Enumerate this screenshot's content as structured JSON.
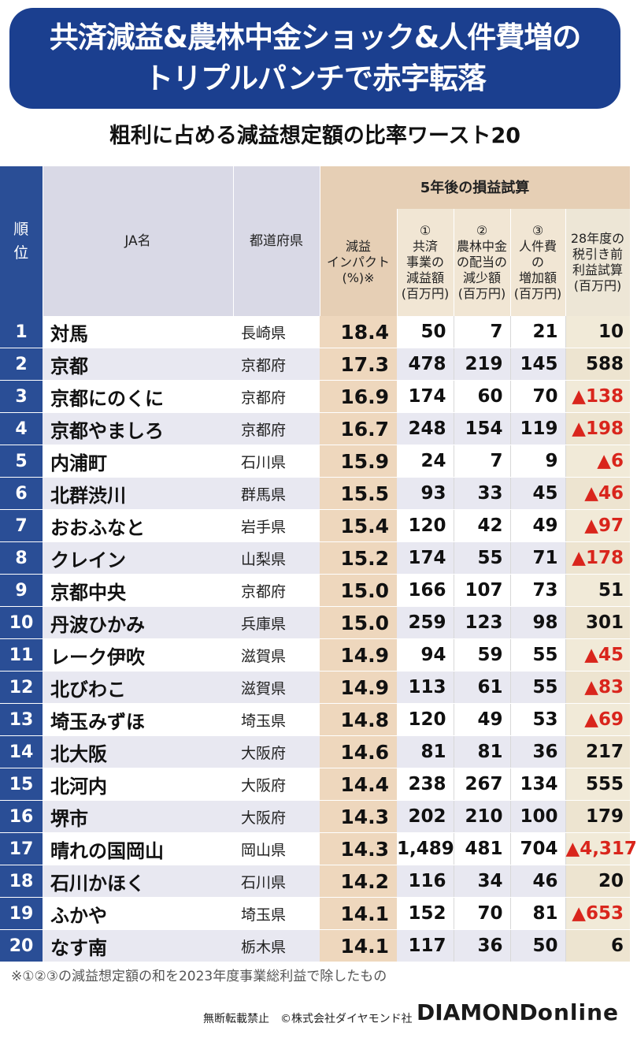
{
  "title_line1": "共済減益&農林中金ショック&人件費増の",
  "title_line2": "トリプルパンチで赤字転落",
  "subtitle": "粗利に占める減益想定額の比率ワースト20",
  "headers": {
    "rank": "順\n位",
    "ja": "JA名",
    "pref": "都道府県",
    "impact": "減益\nインパクト\n(%)※",
    "group": "5年後の損益試算",
    "c1": "①\n共済\n事業の\n減益額\n(百万円)",
    "c2": "②\n農林中金\nの配当の\n減少額\n(百万円)",
    "c3": "③\n人件費\nの\n増加額\n(百万円)",
    "c4": "28年度の\n税引き前\n利益試算\n(百万円)"
  },
  "rows": [
    {
      "rank": "1",
      "ja": "対馬",
      "pref": "長崎県",
      "impact": "18.4",
      "c1": "50",
      "c2": "7",
      "c3": "21",
      "c4": "10",
      "neg": false
    },
    {
      "rank": "2",
      "ja": "京都",
      "pref": "京都府",
      "impact": "17.3",
      "c1": "478",
      "c2": "219",
      "c3": "145",
      "c4": "588",
      "neg": false
    },
    {
      "rank": "3",
      "ja": "京都にのくに",
      "pref": "京都府",
      "impact": "16.9",
      "c1": "174",
      "c2": "60",
      "c3": "70",
      "c4": "▲138",
      "neg": true
    },
    {
      "rank": "4",
      "ja": "京都やましろ",
      "pref": "京都府",
      "impact": "16.7",
      "c1": "248",
      "c2": "154",
      "c3": "119",
      "c4": "▲198",
      "neg": true
    },
    {
      "rank": "5",
      "ja": "内浦町",
      "pref": "石川県",
      "impact": "15.9",
      "c1": "24",
      "c2": "7",
      "c3": "9",
      "c4": "▲6",
      "neg": true
    },
    {
      "rank": "6",
      "ja": "北群渋川",
      "pref": "群馬県",
      "impact": "15.5",
      "c1": "93",
      "c2": "33",
      "c3": "45",
      "c4": "▲46",
      "neg": true
    },
    {
      "rank": "7",
      "ja": "おおふなと",
      "pref": "岩手県",
      "impact": "15.4",
      "c1": "120",
      "c2": "42",
      "c3": "49",
      "c4": "▲97",
      "neg": true
    },
    {
      "rank": "8",
      "ja": "クレイン",
      "pref": "山梨県",
      "impact": "15.2",
      "c1": "174",
      "c2": "55",
      "c3": "71",
      "c4": "▲178",
      "neg": true
    },
    {
      "rank": "9",
      "ja": "京都中央",
      "pref": "京都府",
      "impact": "15.0",
      "c1": "166",
      "c2": "107",
      "c3": "73",
      "c4": "51",
      "neg": false
    },
    {
      "rank": "10",
      "ja": "丹波ひかみ",
      "pref": "兵庫県",
      "impact": "15.0",
      "c1": "259",
      "c2": "123",
      "c3": "98",
      "c4": "301",
      "neg": false
    },
    {
      "rank": "11",
      "ja": "レーク伊吹",
      "pref": "滋賀県",
      "impact": "14.9",
      "c1": "94",
      "c2": "59",
      "c3": "55",
      "c4": "▲45",
      "neg": true
    },
    {
      "rank": "12",
      "ja": "北びわこ",
      "pref": "滋賀県",
      "impact": "14.9",
      "c1": "113",
      "c2": "61",
      "c3": "55",
      "c4": "▲83",
      "neg": true
    },
    {
      "rank": "13",
      "ja": "埼玉みずほ",
      "pref": "埼玉県",
      "impact": "14.8",
      "c1": "120",
      "c2": "49",
      "c3": "53",
      "c4": "▲69",
      "neg": true
    },
    {
      "rank": "14",
      "ja": "北大阪",
      "pref": "大阪府",
      "impact": "14.6",
      "c1": "81",
      "c2": "81",
      "c3": "36",
      "c4": "217",
      "neg": false
    },
    {
      "rank": "15",
      "ja": "北河内",
      "pref": "大阪府",
      "impact": "14.4",
      "c1": "238",
      "c2": "267",
      "c3": "134",
      "c4": "555",
      "neg": false
    },
    {
      "rank": "16",
      "ja": "堺市",
      "pref": "大阪府",
      "impact": "14.3",
      "c1": "202",
      "c2": "210",
      "c3": "100",
      "c4": "179",
      "neg": false
    },
    {
      "rank": "17",
      "ja": "晴れの国岡山",
      "pref": "岡山県",
      "impact": "14.3",
      "c1": "1,489",
      "c2": "481",
      "c3": "704",
      "c4": "▲4,317",
      "neg": true
    },
    {
      "rank": "18",
      "ja": "石川かほく",
      "pref": "石川県",
      "impact": "14.2",
      "c1": "116",
      "c2": "34",
      "c3": "46",
      "c4": "20",
      "neg": false
    },
    {
      "rank": "19",
      "ja": "ふかや",
      "pref": "埼玉県",
      "impact": "14.1",
      "c1": "152",
      "c2": "70",
      "c3": "81",
      "c4": "▲653",
      "neg": true
    },
    {
      "rank": "20",
      "ja": "なす南",
      "pref": "栃木県",
      "impact": "14.1",
      "c1": "117",
      "c2": "36",
      "c3": "50",
      "c4": "6",
      "neg": false
    }
  ],
  "note": "※①②③の減益想定額の和を2023年度事業総利益で除したもの",
  "footer": "無断転載禁止　©株式会社ダイヤモンド社",
  "logo_bold": "DIAMOND",
  "logo_light": "online",
  "colors": {
    "banner": "#1b3f8f",
    "rank_col": "#2a4e96",
    "negative": "#d9251c",
    "impact_col": "#eed7bd"
  }
}
